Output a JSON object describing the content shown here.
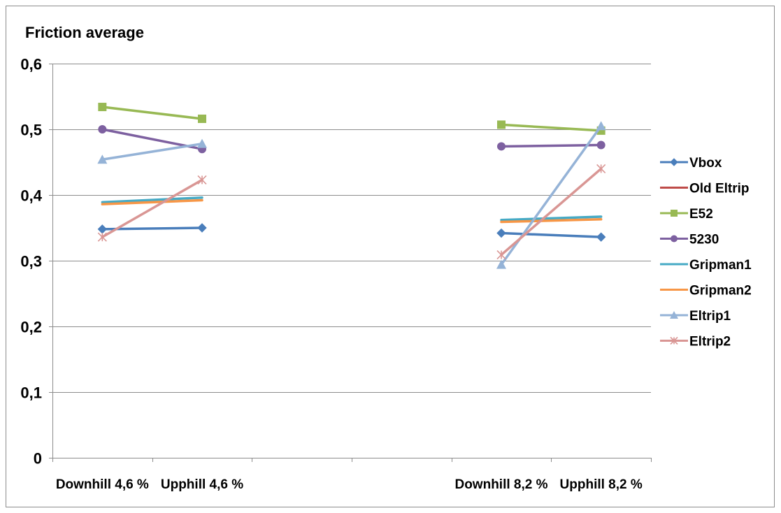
{
  "chart_data": {
    "type": "line",
    "title": "Friction average",
    "xlabel": "",
    "ylabel": "",
    "ylim": [
      0,
      0.6
    ],
    "yticks": [
      "0",
      "0,1",
      "0,2",
      "0,3",
      "0,4",
      "0,5",
      "0,6"
    ],
    "grid": true,
    "legend_position": "right",
    "categories": [
      "Downhill 4,6 %",
      "Upphill 4,6 %",
      "",
      "",
      "Downhill 8,2 %",
      "Upphill 8,2 %"
    ],
    "groups": [
      [
        0,
        1
      ],
      [
        4,
        5
      ]
    ],
    "series": [
      {
        "name": "Vbox",
        "color": "#4a7ebb",
        "marker": "diamond",
        "values": [
          0.348,
          0.35,
          null,
          null,
          0.342,
          0.336
        ]
      },
      {
        "name": "Old Eltrip",
        "color": "#be4b48",
        "marker": "none",
        "values": [
          null,
          null,
          null,
          null,
          null,
          null
        ]
      },
      {
        "name": "E52",
        "color": "#98b954",
        "marker": "square",
        "values": [
          0.534,
          0.516,
          null,
          null,
          0.507,
          0.498
        ]
      },
      {
        "name": "5230",
        "color": "#7d60a0",
        "marker": "circle",
        "values": [
          0.5,
          0.47,
          null,
          null,
          0.474,
          0.476
        ]
      },
      {
        "name": "Gripman1",
        "color": "#46aac5",
        "marker": "none",
        "values": [
          0.389,
          0.396,
          null,
          null,
          0.362,
          0.367
        ]
      },
      {
        "name": "Gripman2",
        "color": "#f79646",
        "marker": "none",
        "values": [
          0.386,
          0.392,
          null,
          null,
          0.359,
          0.363
        ]
      },
      {
        "name": "Eltrip1",
        "color": "#95b3d7",
        "marker": "triangle",
        "values": [
          0.454,
          0.478,
          null,
          null,
          0.294,
          0.505
        ]
      },
      {
        "name": "Eltrip2",
        "color": "#d99694",
        "marker": "star",
        "values": [
          0.336,
          0.423,
          null,
          null,
          0.309,
          0.44
        ]
      }
    ]
  }
}
